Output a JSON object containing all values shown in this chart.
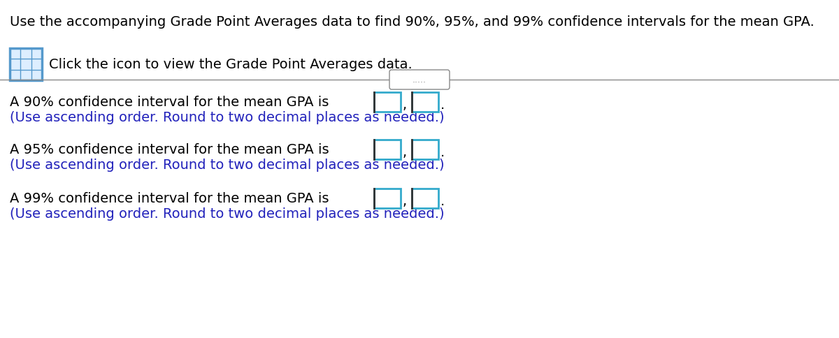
{
  "title_text": "Use the accompanying Grade Point Averages data to find 90%, 95%, and 99% confidence intervals for the mean GPA.",
  "icon_text": "Click the icon to view the Grade Point Averages data.",
  "divider_dots": ".....",
  "line1_text": "A 90% confidence interval for the mean GPA is ",
  "line1_sub": "(Use ascending order. Round to two decimal places as needed.)",
  "line2_text": "A 95% confidence interval for the mean GPA is ",
  "line2_sub": "(Use ascending order. Round to two decimal places as needed.)",
  "line3_text": "A 99% confidence interval for the mean GPA is ",
  "line3_sub": "(Use ascending order. Round to two decimal places as needed.)",
  "background_color": "#ffffff",
  "text_color": "#000000",
  "blue_text_color": "#2222bb",
  "teal_color": "#33aacc",
  "box_border_dark": "#333333",
  "icon_border_color": "#5599cc",
  "icon_fill_color": "#ddeeff",
  "separator_color": "#888888",
  "title_fontsize": 14,
  "body_fontsize": 14,
  "sub_fontsize": 14
}
